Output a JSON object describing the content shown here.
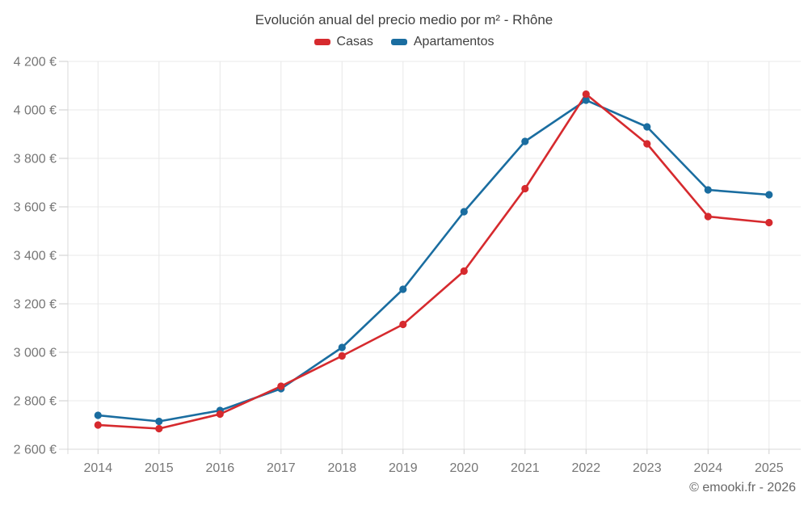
{
  "title": "Evolución anual del precio medio por m² - Rhône",
  "footer": "© emooki.fr - 2026",
  "colors": {
    "casas": "#d62a2e",
    "apartamentos": "#1a6da0",
    "grid": "#e8e8e8",
    "axis_text": "#767676"
  },
  "chart_data": {
    "type": "line",
    "title": "Evolución anual del precio medio por m² - Rhône",
    "categories": [
      "2014",
      "2015",
      "2016",
      "2017",
      "2018",
      "2019",
      "2020",
      "2021",
      "2022",
      "2023",
      "2024",
      "2025"
    ],
    "series": [
      {
        "name": "Casas",
        "color": "#d62a2e",
        "values": [
          2700,
          2685,
          2745,
          2860,
          2985,
          3115,
          3335,
          3675,
          4065,
          3860,
          3560,
          3535
        ]
      },
      {
        "name": "Apartamentos",
        "color": "#1a6da0",
        "values": [
          2740,
          2715,
          2760,
          2850,
          3020,
          3260,
          3580,
          3870,
          4040,
          3930,
          3670,
          3650
        ]
      }
    ],
    "ylim": [
      2600,
      4200
    ],
    "ytick_step": 200,
    "ytick_labels": [
      "2 600 €",
      "2 800 €",
      "3 000 €",
      "3 200 €",
      "3 400 €",
      "3 600 €",
      "3 800 €",
      "4 000 €",
      "4 200 €"
    ],
    "currency_suffix": "€",
    "grid": true,
    "legend_position": "top",
    "marker": "circle"
  }
}
